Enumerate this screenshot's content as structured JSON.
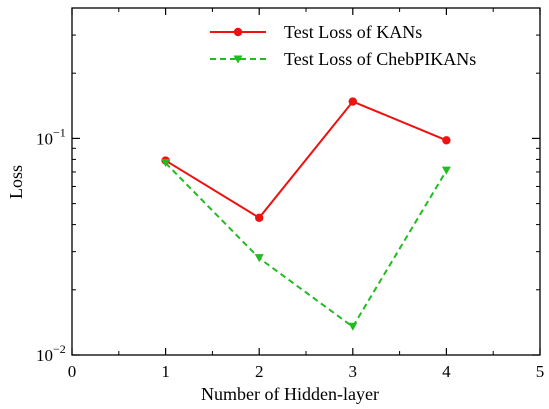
{
  "chart_data": {
    "type": "line",
    "xlabel": "Number of Hidden-layer",
    "ylabel": "Loss",
    "xlim": [
      0,
      5
    ],
    "ylim": [
      0.01,
      0.4
    ],
    "yscale": "log",
    "grid": false,
    "legend_position": "top-right",
    "x_ticks": [
      0,
      1,
      2,
      3,
      4,
      5
    ],
    "y_ticks": [
      {
        "base": "10",
        "exp": "−1",
        "value": 0.1
      },
      {
        "base": "10",
        "exp": "−2",
        "value": 0.01
      }
    ],
    "x": [
      1,
      2,
      3,
      4
    ],
    "series": [
      {
        "name": "Test Loss of KANs",
        "values": [
          0.079,
          0.043,
          0.148,
          0.098
        ],
        "color": "#ee1111",
        "style": "solid",
        "marker": "circle"
      },
      {
        "name": "Test Loss of ChebPIKANs",
        "values": [
          0.077,
          0.028,
          0.0135,
          0.071
        ],
        "color": "#22bb22",
        "style": "dashed",
        "marker": "triangle-down"
      }
    ]
  }
}
